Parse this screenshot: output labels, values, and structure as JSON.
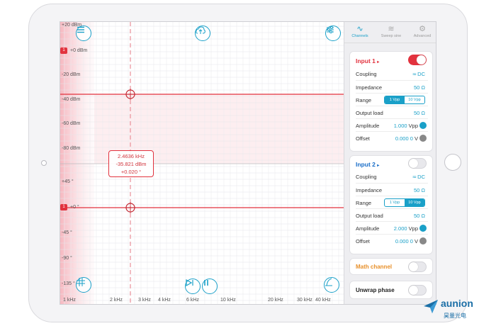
{
  "plot": {
    "y_labels": [
      "+20 dBm",
      "+0 dBm",
      "-20 dBm",
      "-40 dBm",
      "-60 dBm",
      "-80 dBm",
      "+45 °",
      "+0 °",
      "-45 °",
      "-90 °",
      "-135 °"
    ],
    "x_labels": [
      "1 kHz",
      "2 kHz",
      "3 kHz",
      "4 kHz",
      "6 kHz",
      "10 kHz",
      "20 kHz",
      "30 kHz",
      "40 kHz"
    ],
    "marker_1": "1",
    "marker_2": "1",
    "readout": {
      "frequency": "2.4636 kHz",
      "magnitude": "-35.821 dBm",
      "phase": "+0.020 °"
    },
    "colors": {
      "trace": "#e2323e",
      "accent": "#1aa0c8"
    },
    "icons": {
      "menu": "menu-icon",
      "upload": "cloud-upload-icon",
      "settings": "sliders-icon",
      "grid": "grid-icon",
      "play": "play-pause-icon",
      "pause": "pause-icon",
      "autoscale": "autoscale-icon"
    }
  },
  "tabs": [
    {
      "label": "Channels",
      "icon": "wave-icon"
    },
    {
      "label": "Sweep sine",
      "icon": "sweep-icon"
    },
    {
      "label": "Advanced",
      "icon": "gear-icon"
    }
  ],
  "input1": {
    "title": "Input 1",
    "enabled": true,
    "coupling_label": "Coupling",
    "coupling_value": "DC",
    "impedance_label": "Impedance",
    "impedance_value": "50 Ω",
    "range_label": "Range",
    "range_options": [
      "1 Vpp",
      "10 Vpp"
    ],
    "range_selected": "1 Vpp",
    "output_label": "Output load",
    "output_value": "50 Ω",
    "amplitude_label": "Amplitude",
    "amplitude_value": "1.000",
    "amplitude_unit": "Vpp",
    "offset_label": "Offset",
    "offset_value": "0.000 0",
    "offset_unit": "V",
    "color": "#e2323e"
  },
  "input2": {
    "title": "Input 2",
    "enabled": false,
    "coupling_label": "Coupling",
    "coupling_value": "DC",
    "impedance_label": "Impedance",
    "impedance_value": "50 Ω",
    "range_label": "Range",
    "range_options": [
      "1 Vpp",
      "10 Vpp"
    ],
    "range_selected": "10 Vpp",
    "output_label": "Output load",
    "output_value": "50 Ω",
    "amplitude_label": "Amplitude",
    "amplitude_value": "2.000",
    "amplitude_unit": "Vpp",
    "offset_label": "Offset",
    "offset_value": "0.000 0",
    "offset_unit": "V",
    "color": "#1a6ec8"
  },
  "math": {
    "label": "Math channel",
    "enabled": false,
    "color": "#e8902a"
  },
  "unwrap": {
    "label": "Unwrap phase",
    "enabled": false
  },
  "brand": {
    "name": "aunion",
    "cn": "昊量光电"
  }
}
